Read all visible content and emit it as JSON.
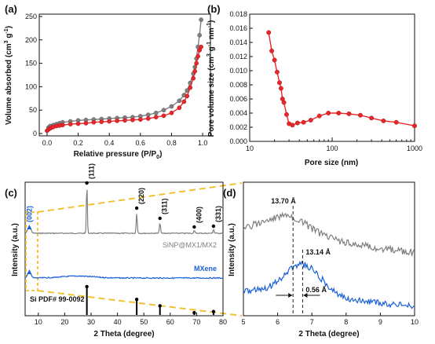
{
  "chart_data": [
    {
      "panel": "(a)",
      "type": "line",
      "xlabel": "Relative pressure (P/P",
      "xlabel_sub": "0",
      "xlabel_end": ")",
      "ylabel": "Volume absorbed (cm",
      "ylabel_sup1": "3",
      "ylabel_mid": " g",
      "ylabel_sup2": "-1",
      "ylabel_end": ")",
      "xlim": [
        -0.05,
        1.05
      ],
      "ylim": [
        -5,
        255
      ],
      "xticks": [
        0.0,
        0.2,
        0.4,
        0.6,
        0.8,
        1.0
      ],
      "xtick_labels": [
        "0.0",
        "0.2",
        "0.4",
        "0.6",
        "0.8",
        "1.0"
      ],
      "yticks": [
        0,
        50,
        100,
        150,
        200,
        250
      ],
      "ytick_labels": [
        "0",
        "50",
        "100",
        "150",
        "200",
        "250"
      ],
      "series": [
        {
          "color": "#7f7f7f",
          "x": [
            0.01,
            0.02,
            0.04,
            0.06,
            0.08,
            0.1,
            0.15,
            0.2,
            0.25,
            0.3,
            0.35,
            0.4,
            0.45,
            0.5,
            0.55,
            0.6,
            0.65,
            0.7,
            0.75,
            0.8,
            0.85,
            0.88,
            0.9,
            0.92,
            0.94,
            0.95,
            0.96,
            0.97,
            0.98,
            0.99
          ],
          "y": [
            13,
            16,
            18,
            20,
            22,
            24,
            26,
            28,
            29,
            30,
            31,
            32,
            33,
            34,
            35,
            37,
            40,
            44,
            50,
            58,
            70,
            82,
            92,
            108,
            128,
            142,
            160,
            185,
            210,
            243
          ]
        },
        {
          "color": "#e8272a",
          "x": [
            0.0,
            0.01,
            0.02,
            0.03,
            0.04,
            0.06,
            0.08,
            0.1,
            0.15,
            0.2,
            0.25,
            0.3,
            0.35,
            0.4,
            0.45,
            0.5,
            0.55,
            0.6,
            0.65,
            0.7,
            0.75,
            0.8,
            0.85,
            0.88,
            0.9,
            0.92,
            0.94,
            0.95,
            0.96,
            0.97,
            0.98,
            0.99
          ],
          "y": [
            6,
            9,
            11,
            13,
            14,
            16,
            17,
            18,
            20,
            21,
            22,
            24,
            25,
            26,
            27,
            28,
            29,
            30,
            32,
            35,
            38,
            44,
            55,
            68,
            80,
            98,
            118,
            133,
            150,
            165,
            178,
            185
          ]
        }
      ]
    },
    {
      "panel": "(b)",
      "type": "line",
      "xscale": "log",
      "xlabel": "Pore size (nm)",
      "ylabel": "Pore volume size (cm",
      "ylabel_sup1": "3",
      "ylabel_mid": " g",
      "ylabel_sup2": "-1",
      "ylabel_mid2": " nm",
      "ylabel_sup3": "-1",
      "ylabel_end": ")",
      "xlim": [
        10,
        1000
      ],
      "ylim": [
        0.0,
        0.018
      ],
      "xticks": [
        10,
        100,
        1000
      ],
      "xtick_labels": [
        "10",
        "100",
        "1000"
      ],
      "yticks": [
        0.0,
        0.002,
        0.004,
        0.006,
        0.008,
        0.01,
        0.012,
        0.014,
        0.016,
        0.018
      ],
      "ytick_labels": [
        "0.000",
        "0.002",
        "0.004",
        "0.006",
        "0.008",
        "0.010",
        "0.012",
        "0.014",
        "0.016",
        "0.018"
      ],
      "series": [
        {
          "color": "#e8272a",
          "x": [
            17,
            18.5,
            20,
            21.5,
            23,
            24,
            25,
            26,
            28,
            30,
            33,
            38,
            45,
            55,
            70,
            90,
            120,
            160,
            220,
            300,
            420,
            600,
            1000
          ],
          "y": [
            0.0154,
            0.0128,
            0.0115,
            0.0098,
            0.0083,
            0.0075,
            0.006,
            0.0055,
            0.0038,
            0.0025,
            0.0023,
            0.0026,
            0.0027,
            0.003,
            0.0036,
            0.004,
            0.004,
            0.0039,
            0.0037,
            0.0033,
            0.0029,
            0.0027,
            0.0022
          ]
        }
      ]
    },
    {
      "panel": "(c)",
      "type": "line",
      "xlabel": "2 Theta (degree)",
      "ylabel": "Intensity (a.u.)",
      "xlim": [
        5,
        80
      ],
      "xticks": [
        10,
        20,
        30,
        40,
        50,
        60,
        70,
        80
      ],
      "xtick_labels": [
        "10",
        "20",
        "30",
        "40",
        "50",
        "60",
        "70",
        "80"
      ],
      "series_labels": [
        "SiNP@MX1/MX2",
        "MXene",
        "Si PDF# 99-0092"
      ],
      "series_colors": [
        "#7f7f7f",
        "#1a5fd6",
        "#000000"
      ],
      "peaks_top": [
        {
          "x": 6.6,
          "label": "(002)"
        },
        {
          "x": 28.4,
          "label": "(111)"
        },
        {
          "x": 47.3,
          "label": "(220)"
        },
        {
          "x": 56.1,
          "label": "(311)"
        },
        {
          "x": 69.1,
          "label": "(400)"
        },
        {
          "x": 76.4,
          "label": "(331)"
        }
      ],
      "pdf_sticks": [
        {
          "x": 28.4,
          "h": 1.0
        },
        {
          "x": 47.3,
          "h": 0.55
        },
        {
          "x": 56.1,
          "h": 0.32
        },
        {
          "x": 69.1,
          "h": 0.08
        },
        {
          "x": 76.4,
          "h": 0.12
        }
      ]
    },
    {
      "panel": "(d)",
      "type": "line",
      "xlabel": "2 Theta (degree)",
      "ylabel": "Intensity (a.u.)",
      "xlim": [
        5,
        10
      ],
      "xticks": [
        5,
        6,
        7,
        8,
        9,
        10
      ],
      "xtick_labels": [
        "5",
        "6",
        "7",
        "8",
        "9",
        "10"
      ],
      "series_colors": [
        "#7f7f7f",
        "#1a5fd6"
      ],
      "annotations": [
        {
          "x": 6.45,
          "label": "13.70 Å"
        },
        {
          "x": 6.73,
          "label": "13.14 Å"
        },
        {
          "label": "0.56 Å"
        }
      ]
    }
  ]
}
